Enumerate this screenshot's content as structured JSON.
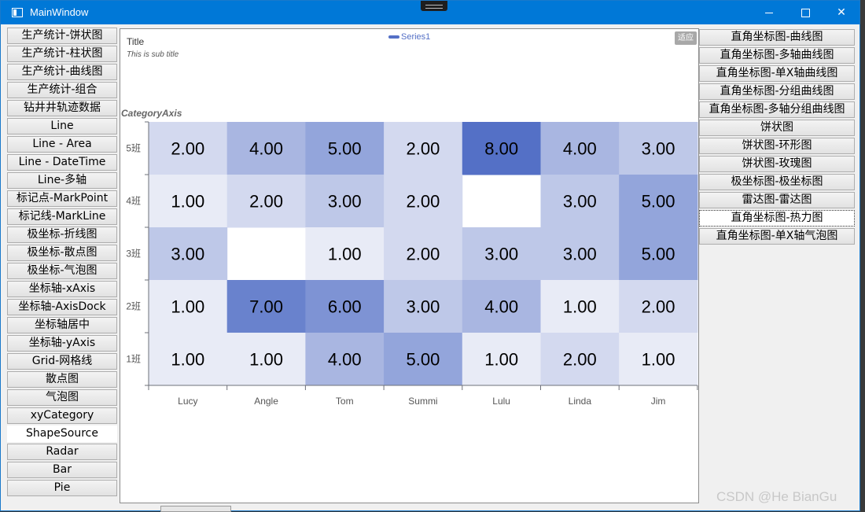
{
  "window": {
    "title": "MainWindow"
  },
  "left_nav": [
    "生产统计-饼状图",
    "生产统计-柱状图",
    "生产统计-曲线图",
    "生产统计-组合",
    "钻井井轨迹数据",
    "Line",
    "Line - Area",
    "Line - DateTime",
    "Line-多轴",
    "标记点-MarkPoint",
    "标记线-MarkLine",
    "极坐标-折线图",
    "极坐标-散点图",
    "极坐标-气泡图",
    "坐标轴-xAxis",
    "坐标轴-AxisDock",
    "坐标轴居中",
    "坐标轴-yAxis",
    "Grid-网格线",
    "散点图",
    "气泡图",
    "xyCategory",
    "ShapeSource",
    "Radar",
    "Bar",
    "Pie"
  ],
  "left_selected_index": 22,
  "right_nav": [
    "直角坐标图-曲线图",
    "直角坐标图-多轴曲线图",
    "直角坐标图-单X轴曲线图",
    "直角坐标图-分组曲线图",
    "直角坐标图-多轴分组曲线图",
    "饼状图",
    "饼状图-环形图",
    "饼状图-玫瑰图",
    "极坐标图-极坐标图",
    "雷达图-雷达图",
    "直角坐标图-热力图",
    "直角坐标图-单X轴气泡图"
  ],
  "right_selected_index": 10,
  "chart_data": {
    "type": "heatmap",
    "title": "Title",
    "subtitle": "This is sub title",
    "legend": [
      "Series1"
    ],
    "fit_button": "适应",
    "y_axis_name": "CategoryAxis",
    "x_categories": [
      "Lucy",
      "Angle",
      "Tom",
      "Summi",
      "Lulu",
      "Linda",
      "Jim"
    ],
    "y_categories": [
      "5班",
      "4班",
      "3班",
      "2班",
      "1班"
    ],
    "values": [
      [
        2,
        4,
        5,
        2,
        8,
        4,
        3
      ],
      [
        1,
        2,
        3,
        2,
        null,
        3,
        5
      ],
      [
        3,
        null,
        1,
        2,
        3,
        3,
        5
      ],
      [
        1,
        7,
        6,
        3,
        4,
        1,
        2
      ],
      [
        1,
        1,
        4,
        5,
        1,
        2,
        1
      ]
    ],
    "value_format": "0.00",
    "color_min": "#e8ebf6",
    "color_max": "#5470c6"
  },
  "watermark": "CSDN @He BianGu"
}
